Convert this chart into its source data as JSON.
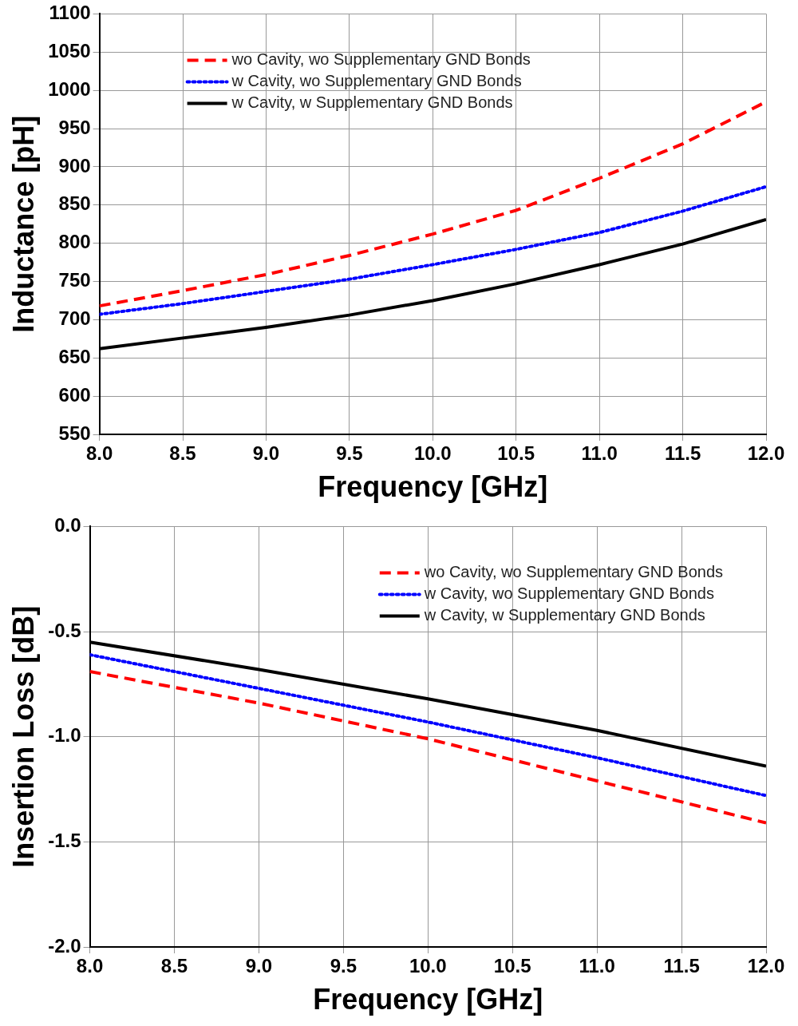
{
  "chart_data": [
    {
      "type": "line",
      "xlabel": "Frequency [GHz]",
      "ylabel": "Inductance [pH]",
      "xlim": [
        8,
        12
      ],
      "ylim": [
        550,
        1100
      ],
      "xticks": [
        {
          "value": 8,
          "label": "8.0"
        },
        {
          "value": 8.5,
          "label": "8.5"
        },
        {
          "value": 9,
          "label": "9.0"
        },
        {
          "value": 9.5,
          "label": "9.5"
        },
        {
          "value": 10,
          "label": "10.0"
        },
        {
          "value": 10.5,
          "label": "10.5"
        },
        {
          "value": 11,
          "label": "11.0"
        },
        {
          "value": 11.5,
          "label": "11.5"
        },
        {
          "value": 12,
          "label": "12.0"
        }
      ],
      "yticks": [
        550,
        600,
        650,
        700,
        750,
        800,
        850,
        900,
        950,
        1000,
        1050,
        1100
      ],
      "grid": true,
      "legend": "top left",
      "marker": "none",
      "x": [
        8,
        8.5,
        9,
        9.5,
        10,
        10.5,
        11,
        11.5,
        12
      ],
      "series": [
        {
          "name": "wo Cavity, wo Supplementary GND Bonds",
          "color": "#ff0000",
          "line_style": "dashed",
          "values": [
            718,
            738,
            759,
            784,
            812,
            843,
            885,
            930,
            985
          ]
        },
        {
          "name": "w Cavity, wo Supplementary GND Bonds",
          "color": "#0000ff",
          "line_style": "dotted",
          "values": [
            707,
            721,
            737,
            753,
            772,
            792,
            814,
            842,
            874
          ]
        },
        {
          "name": "w Cavity, w Supplementary GND Bonds",
          "color": "#000000",
          "line_style": "solid",
          "values": [
            662,
            676,
            690,
            706,
            725,
            747,
            772,
            799,
            831
          ]
        }
      ]
    },
    {
      "type": "line",
      "xlabel": "Frequency [GHz]",
      "ylabel": "Insertion Loss [dB]",
      "xlim": [
        8,
        12
      ],
      "ylim": [
        -2,
        0
      ],
      "xticks": [
        {
          "value": 8,
          "label": "8.0"
        },
        {
          "value": 8.5,
          "label": "8.5"
        },
        {
          "value": 9,
          "label": "9.0"
        },
        {
          "value": 9.5,
          "label": "9.5"
        },
        {
          "value": 10,
          "label": "10.0"
        },
        {
          "value": 10.5,
          "label": "10.5"
        },
        {
          "value": 11,
          "label": "11.0"
        },
        {
          "value": 11.5,
          "label": "11.5"
        },
        {
          "value": 12,
          "label": "12.0"
        }
      ],
      "yticks": [
        {
          "value": -2,
          "label": "-2.0"
        },
        {
          "value": -1.5,
          "label": "-1.5"
        },
        {
          "value": -1,
          "label": "-1.0"
        },
        {
          "value": -0.5,
          "label": "-0.5"
        },
        {
          "value": 0,
          "label": "0.0"
        }
      ],
      "grid": true,
      "legend": "top right",
      "marker": "none",
      "x": [
        8,
        9,
        10,
        11,
        12
      ],
      "series": [
        {
          "name": "wo Cavity, wo Supplementary GND Bonds",
          "color": "#ff0000",
          "line_style": "dashed",
          "values": [
            -0.69,
            -0.84,
            -1.01,
            -1.21,
            -1.41
          ]
        },
        {
          "name": "w Cavity, wo Supplementary GND Bonds",
          "color": "#0000ff",
          "line_style": "dotted",
          "values": [
            -0.61,
            -0.77,
            -0.93,
            -1.1,
            -1.28
          ]
        },
        {
          "name": "w Cavity, w Supplementary GND Bonds",
          "color": "#000000",
          "line_style": "solid",
          "values": [
            -0.55,
            -0.68,
            -0.82,
            -0.97,
            -1.14
          ]
        }
      ]
    }
  ]
}
